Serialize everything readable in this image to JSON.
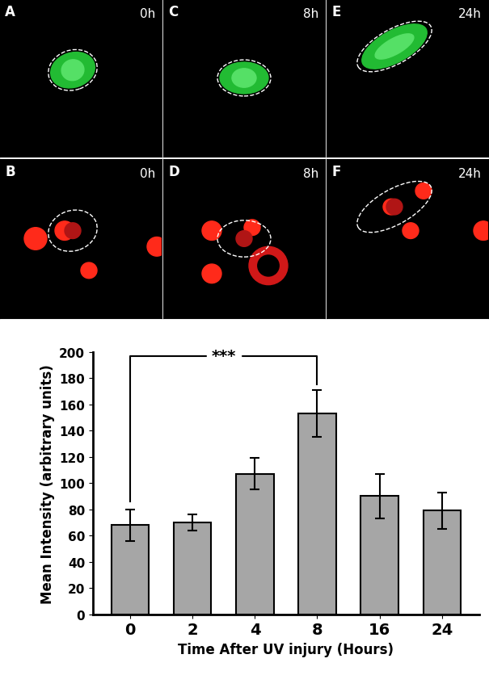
{
  "panels": [
    {
      "label": "A",
      "time": "0h"
    },
    {
      "label": "C",
      "time": "8h"
    },
    {
      "label": "E",
      "time": "24h"
    },
    {
      "label": "B",
      "time": "0h"
    },
    {
      "label": "D",
      "time": "8h"
    },
    {
      "label": "F",
      "time": "24h"
    }
  ],
  "chart_data": {
    "type": "bar",
    "categories": [
      "0",
      "2",
      "4",
      "8",
      "16",
      "24"
    ],
    "values": [
      68,
      70,
      107,
      153,
      90,
      79
    ],
    "error": [
      12,
      6,
      12,
      18,
      17,
      14
    ],
    "color": "#a6a6a6",
    "x_label": "Time After UV injury (Hours)",
    "y_label": "Mean Intensity (arbitrary units)",
    "ylim": [
      0,
      200
    ],
    "yticks": [
      0,
      20,
      40,
      60,
      80,
      100,
      120,
      140,
      160,
      180,
      200
    ],
    "annotations": [
      {
        "text": "***",
        "from": "0",
        "to": "8"
      }
    ]
  }
}
